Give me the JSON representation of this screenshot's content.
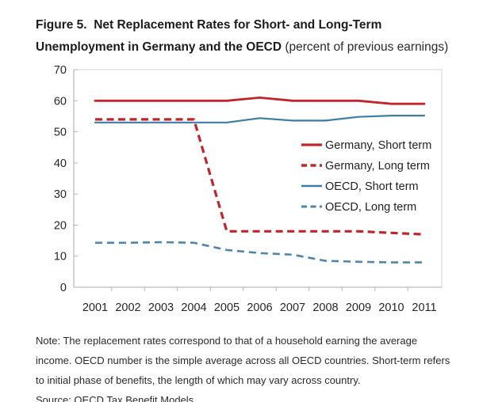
{
  "title": {
    "line1": "Figure 5.  Net Replacement Rates for Short- and Long-Term",
    "line2_bold": "Unemployment in Germany and the OECD",
    "line2_suffix": " (percent of previous earnings)"
  },
  "notes": {
    "lines": [
      "Note: The replacement rates correspond to that of a household earning the average",
      "income. OECD number is the simple average across all OECD countries. Short-term refers",
      "to initial phase of benefits, the length of which may vary across country."
    ],
    "source": "Source: OECD Tax Benefit Models."
  },
  "chart_data": {
    "type": "line",
    "title": "Net Replacement Rates for Short- and Long-Term Unemployment in Germany and the OECD (percent of previous earnings)",
    "xlabel": "",
    "ylabel": "",
    "x": [
      "2001",
      "2002",
      "2003",
      "2004",
      "2005",
      "2006",
      "2007",
      "2008",
      "2009",
      "2010",
      "2011"
    ],
    "ylim": [
      0,
      70
    ],
    "yticks": [
      0,
      10,
      20,
      30,
      40,
      50,
      60,
      70
    ],
    "grid": false,
    "legend_position": "inside-right",
    "series": [
      {
        "name": "Germany, Short term",
        "color": "#bf262b",
        "dash": null,
        "width": 2.8,
        "values": [
          60,
          60,
          60,
          60,
          60,
          61,
          60,
          60,
          60,
          59,
          59
        ]
      },
      {
        "name": "Germany, Long term",
        "color": "#bf262b",
        "dash": "9,5.5",
        "width": 3.2,
        "values": [
          54,
          54,
          54,
          54,
          18,
          18,
          18,
          18,
          18,
          17.5,
          17
        ]
      },
      {
        "name": "OECD, Short term",
        "color": "#3e7ca4",
        "dash": null,
        "width": 2.2,
        "values": [
          53,
          53,
          53,
          53,
          53,
          54.4,
          53.6,
          53.6,
          54.8,
          55.2,
          55.2
        ]
      },
      {
        "name": "OECD, Long term",
        "color": "#4c86aa",
        "dash": "9,6",
        "width": 2.6,
        "values": [
          14.3,
          14.3,
          14.5,
          14.3,
          12,
          11,
          10.5,
          8.5,
          8.2,
          8,
          8
        ]
      }
    ],
    "colors": {
      "frame": "#d6d6d6",
      "axis": "#a9a9a9",
      "tick": "#b5b5b5",
      "tick_text": "#262626",
      "legend_text": "#1f1f1f"
    }
  }
}
